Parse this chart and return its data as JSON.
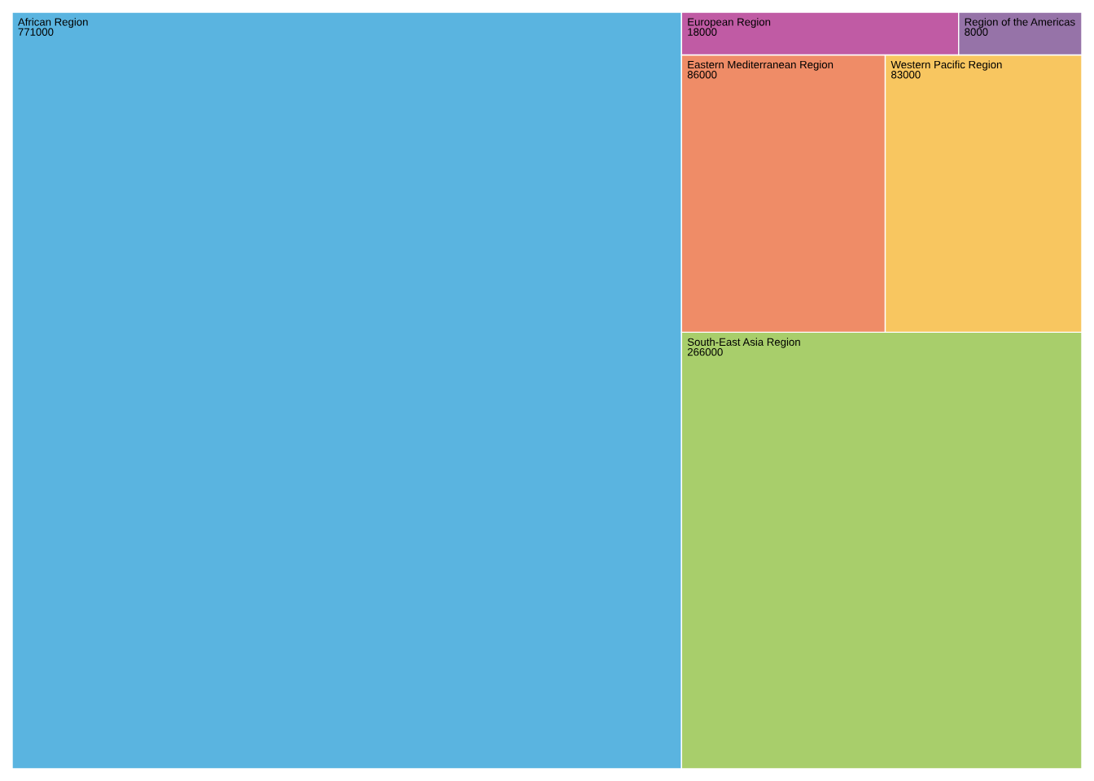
{
  "chart_data": {
    "type": "other",
    "categories": [
      "African Region",
      "South-East Asia Region",
      "Eastern Mediterranean Region",
      "Western Pacific Region",
      "European Region",
      "Region of the Americas"
    ],
    "values": [
      771000,
      266000,
      86000,
      83000,
      18000,
      8000
    ],
    "colors": [
      "#5ab4e0",
      "#a8ce6b",
      "#ef8c67",
      "#f8c660",
      "#c05ba4",
      "#9673a8"
    ],
    "data_labels": true
  }
}
